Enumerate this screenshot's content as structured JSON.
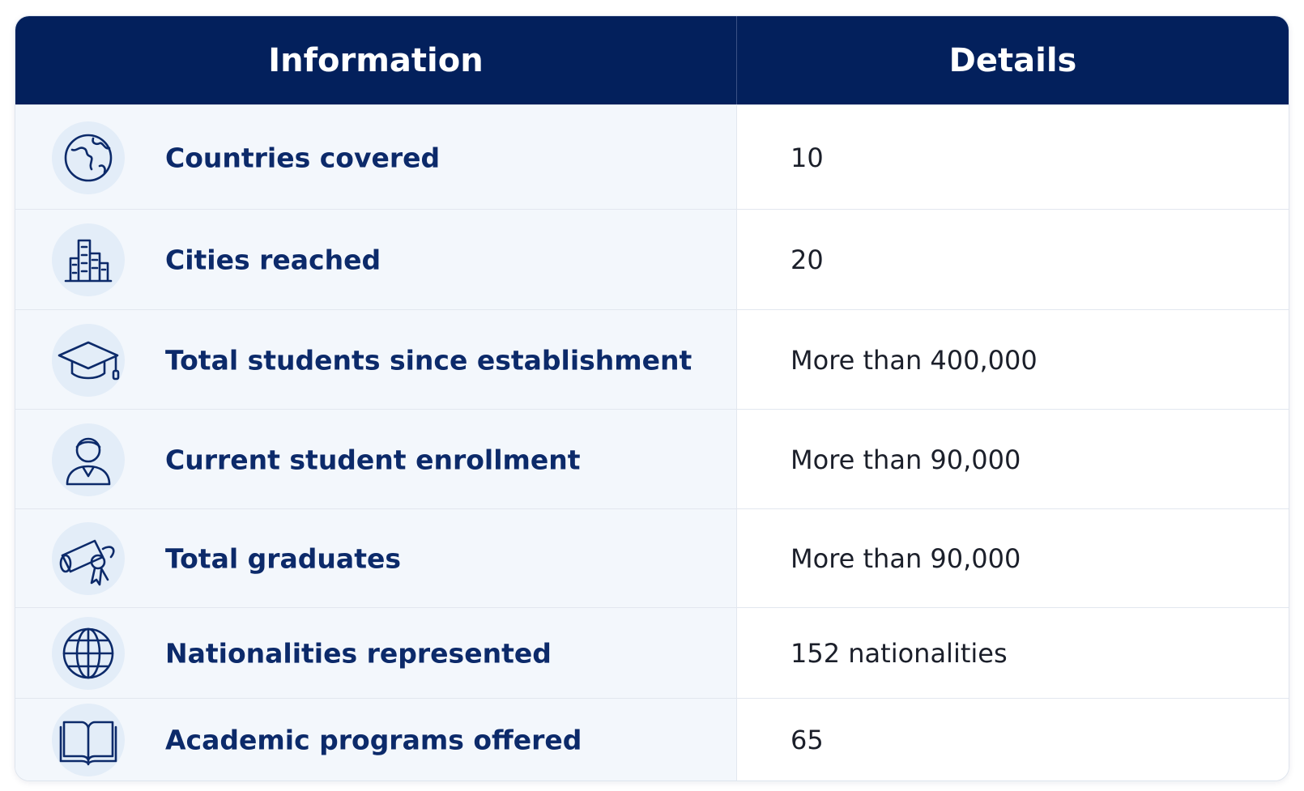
{
  "table": {
    "header": [
      "Information",
      "Details"
    ],
    "rows": [
      [
        "Countries covered",
        "10"
      ],
      [
        "Cities reached",
        "20"
      ],
      [
        "Total students since establishment",
        "More than 400,000"
      ],
      [
        "Current student enrollment",
        "More than 90,000"
      ],
      [
        "Total graduates",
        "More than 90,000"
      ],
      [
        "Nationalities represented",
        "152 nationalities"
      ],
      [
        "Academic programs offered",
        "65"
      ]
    ]
  }
}
